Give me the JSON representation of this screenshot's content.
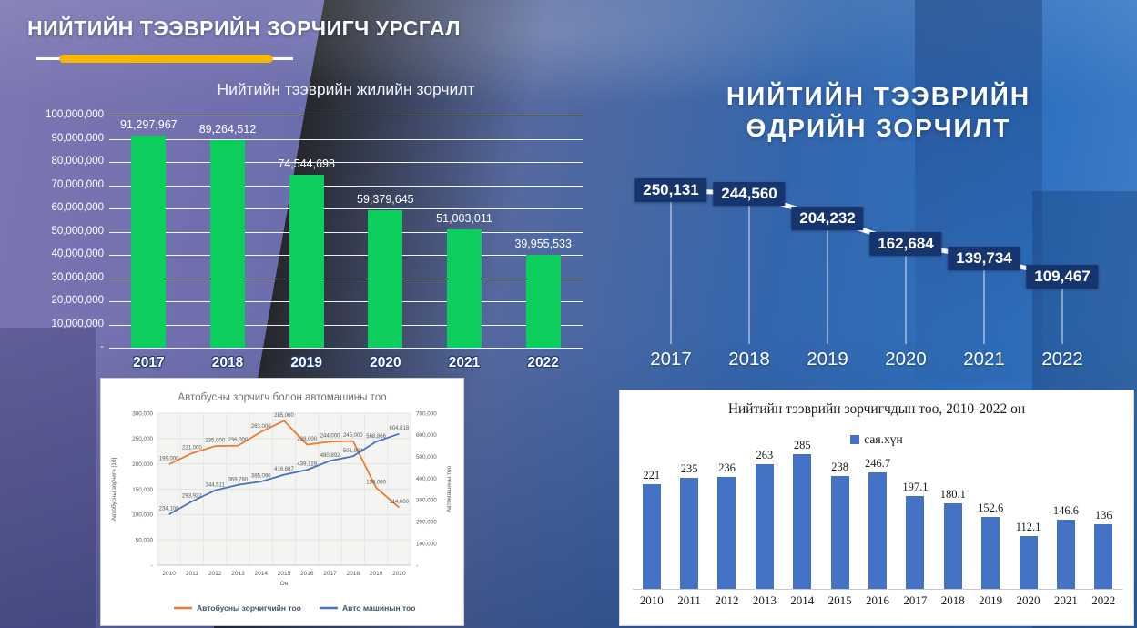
{
  "page": {
    "title": "НИЙТИЙН ТЭЭВРИЙН ЗОРЧИГЧ УРСГАЛ",
    "accent_color": "#F5B700"
  },
  "chart_data": [
    {
      "type": "bar",
      "title": "Нийтийн тээврийн жилийн зорчилт",
      "categories": [
        "2017",
        "2018",
        "2019",
        "2020",
        "2021",
        "2022"
      ],
      "values": [
        91297967,
        89264512,
        74544698,
        59379645,
        51003011,
        39955533
      ],
      "value_labels": [
        "91,297,967",
        "89,264,512",
        "74,544,698",
        "59,379,645",
        "51,003,011",
        "39,955,533"
      ],
      "y_ticks": [
        "100,000,000",
        "90,000,000",
        "80,000,000",
        "70,000,000",
        "60,000,000",
        "50,000,000",
        "40,000,000",
        "30,000,000",
        "20,000,000",
        "10,000,000",
        "-"
      ],
      "ylim": [
        0,
        100000000
      ],
      "bar_color": "#0BCE5C",
      "grid": true,
      "text_color": "#FFFFFF"
    },
    {
      "type": "line",
      "title": "НИЙТИЙН ТЭЭВРИЙН ӨДРИЙН ЗОРЧИЛТ",
      "title_lines": [
        "НИЙТИЙН ТЭЭВРИЙН",
        "ӨДРИЙН ЗОРЧИЛТ"
      ],
      "categories": [
        "2017",
        "2018",
        "2019",
        "2020",
        "2021",
        "2022"
      ],
      "values": [
        250131,
        244560,
        204232,
        162684,
        139734,
        109467
      ],
      "value_labels": [
        "250,131",
        "244,560",
        "204,232",
        "162,684",
        "139,734",
        "109,467"
      ],
      "line_color": "#FFFFFF",
      "label_box_color": "#16356E",
      "text_color": "#FFFFFF",
      "legend_position": "none"
    },
    {
      "type": "line",
      "title": "Автобусны зорчигч болон автомашины тоо",
      "x": [
        "2010",
        "2011",
        "2012",
        "2013",
        "2014",
        "2015",
        "2016",
        "2017",
        "2018",
        "2019",
        "2020"
      ],
      "xlabel": "Он",
      "y_left_label": "Автобусны зорчигч [10]",
      "y_right_label": "Автомашины тоо",
      "y_left_ticks": [
        "300,000",
        "250,000",
        "200,000",
        "150,000",
        "100,000",
        "50,000",
        "-"
      ],
      "y_right_ticks": [
        "700,000",
        "600,000",
        "500,000",
        "400,000",
        "300,000",
        "200,000",
        "100,000",
        "-"
      ],
      "y_left_lim": [
        0,
        300000
      ],
      "y_right_lim": [
        0,
        700000
      ],
      "grid": true,
      "legend_position": "bottom",
      "series": [
        {
          "name": "Автобусны зорчигчийн тоо",
          "axis": "left",
          "color": "#ED7D31",
          "values": [
            199000,
            221000,
            235000,
            236000,
            263000,
            285000,
            238000,
            244000,
            245000,
            153000,
            114000
          ],
          "labels": [
            "199,000",
            "221,000",
            "235,000",
            "236,000",
            "263,000",
            "285,000",
            "238,000",
            "244,000",
            "245,000",
            "153,000",
            "114,000"
          ]
        },
        {
          "name": "Авто машинын тоо",
          "axis": "right",
          "color": "#4472C4",
          "values": [
            234108,
            293922,
            344511,
            369780,
            385090,
            416687,
            439129,
            480892,
            501934,
            568866,
            604818
          ],
          "labels": [
            "234,108",
            "293,922",
            "344,511",
            "369,780",
            "385,090",
            "416,687",
            "439,129",
            "480,892",
            "501,934",
            "568,866",
            "604,818"
          ]
        }
      ]
    },
    {
      "type": "bar",
      "title": "Нийтийн тээврийн зорчигчдын тоо, 2010-2022 он",
      "legend": "сая.хүн",
      "categories": [
        "2010",
        "2011",
        "2012",
        "2013",
        "2014",
        "2015",
        "2016",
        "2017",
        "2018",
        "2019",
        "2020",
        "2021",
        "2022"
      ],
      "values": [
        221,
        235,
        236,
        263,
        285,
        238,
        246.7,
        197.1,
        180.1,
        152.6,
        112.1,
        146.6,
        136
      ],
      "value_labels": [
        "221",
        "235",
        "236",
        "263",
        "285",
        "238",
        "246.7",
        "197.1",
        "180.1",
        "152.6",
        "112.1",
        "146.6",
        "136"
      ],
      "bar_color": "#4472C4",
      "ylim": [
        0,
        285
      ],
      "text_color": "#1A1A1A"
    }
  ]
}
